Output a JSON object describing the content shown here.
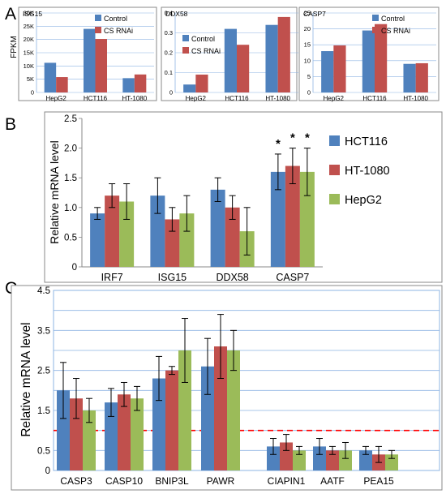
{
  "panel_letters": [
    "A",
    "B",
    "C"
  ],
  "colors": {
    "blue": "#4f81bd",
    "red": "#c0504d",
    "green": "#9bbb59",
    "axis": "#8eb4e3",
    "frame": "#8a8a8a",
    "dash": "#ff0000"
  },
  "chart_data": [
    {
      "panel": "A",
      "type": "bar",
      "title": "ISG15",
      "ylabel": "FPKM",
      "categories": [
        "HepG2",
        "HCT116",
        "HT-1080"
      ],
      "ylim": [
        0,
        30
      ],
      "yticks": [
        "0",
        "5K",
        "10K",
        "15K",
        "20K",
        "25K",
        "30K"
      ],
      "legend_position": "top-right",
      "series": [
        {
          "name": "Control",
          "color": "#4f81bd",
          "values": [
            11.2,
            24,
            5.4
          ]
        },
        {
          "name": "CS RNAi",
          "color": "#c0504d",
          "values": [
            5.8,
            20.2,
            6.8
          ]
        }
      ]
    },
    {
      "panel": "A",
      "type": "bar",
      "title": "DDX58",
      "categories": [
        "HepG2",
        "HCT116",
        "HT-1080"
      ],
      "ylim": [
        0,
        0.4
      ],
      "yticks": [
        "0",
        "0.1",
        "0.2",
        "0.3",
        "0.4"
      ],
      "legend_position": "top-left",
      "series": [
        {
          "name": "Control",
          "color": "#4f81bd",
          "values": [
            0.04,
            0.32,
            0.34
          ]
        },
        {
          "name": "CS RNAi",
          "color": "#c0504d",
          "values": [
            0.09,
            0.24,
            0.38
          ]
        }
      ]
    },
    {
      "panel": "A",
      "type": "bar",
      "title": "CASP7",
      "categories": [
        "HepG2",
        "HCT116",
        "HT-1080"
      ],
      "ylim": [
        0,
        25
      ],
      "yticks": [
        "0",
        "5",
        "10",
        "15",
        "20",
        "25"
      ],
      "legend_position": "top-right",
      "series": [
        {
          "name": "Control",
          "color": "#4f81bd",
          "values": [
            13,
            19.5,
            9
          ]
        },
        {
          "name": "CS RNAi",
          "color": "#c0504d",
          "values": [
            14.8,
            21.5,
            9.2
          ]
        }
      ]
    },
    {
      "panel": "B",
      "type": "bar",
      "ylabel": "Relative mRNA level",
      "categories": [
        "IRF7",
        "ISG15",
        "DDX58",
        "CASP7"
      ],
      "ylim": [
        0,
        2.5
      ],
      "yticks": [
        "0",
        "0.5",
        "1.0",
        "1.5",
        "2.0",
        "2.5"
      ],
      "legend_position": "right",
      "significance_marker": "*",
      "significant_categories": [
        "CASP7"
      ],
      "series": [
        {
          "name": "HCT116",
          "color": "#4f81bd",
          "values": [
            0.9,
            1.2,
            1.3,
            1.6
          ],
          "errors": [
            0.1,
            0.3,
            0.2,
            0.3
          ]
        },
        {
          "name": "HT-1080",
          "color": "#c0504d",
          "values": [
            1.2,
            0.8,
            1.0,
            1.7
          ],
          "errors": [
            0.2,
            0.2,
            0.2,
            0.3
          ]
        },
        {
          "name": "HepG2",
          "color": "#9bbb59",
          "values": [
            1.1,
            0.9,
            0.6,
            1.6
          ],
          "errors": [
            0.3,
            0.3,
            0.4,
            0.4
          ]
        }
      ]
    },
    {
      "panel": "C",
      "type": "bar",
      "ylabel": "Relative mRNA level",
      "categories": [
        "CASP3",
        "CASP10",
        "BNIP3L",
        "PAWR",
        "CIAPIN1",
        "AATF",
        "PEA15"
      ],
      "ylim": [
        0,
        4.5
      ],
      "yticks": [
        "0",
        "0.5",
        "",
        "1.5",
        "",
        "2.5",
        "",
        "3.5",
        "",
        "4.5"
      ],
      "reference_line": 1.0,
      "series": [
        {
          "color": "#4f81bd",
          "values": [
            2.0,
            1.7,
            2.3,
            2.6,
            0.6,
            0.6,
            0.5
          ],
          "errors": [
            0.7,
            0.35,
            0.55,
            0.7,
            0.2,
            0.2,
            0.1
          ]
        },
        {
          "color": "#c0504d",
          "values": [
            1.8,
            1.9,
            2.5,
            3.1,
            0.7,
            0.5,
            0.4
          ],
          "errors": [
            0.5,
            0.3,
            0.1,
            0.8,
            0.2,
            0.1,
            0.2
          ]
        },
        {
          "color": "#9bbb59",
          "values": [
            1.5,
            1.8,
            3.0,
            3.0,
            0.5,
            0.5,
            0.4
          ],
          "errors": [
            0.3,
            0.3,
            0.8,
            0.5,
            0.1,
            0.2,
            0.1
          ]
        }
      ]
    }
  ]
}
